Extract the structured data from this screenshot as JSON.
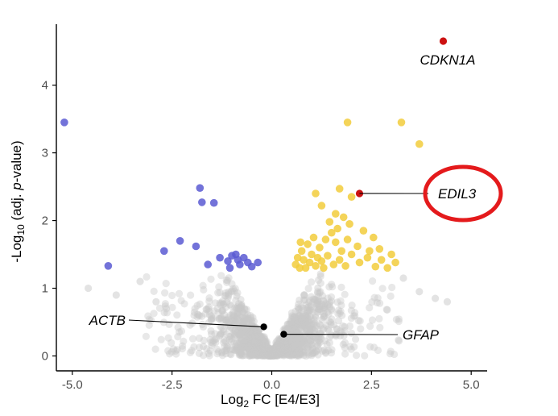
{
  "chart_data": {
    "type": "scatter",
    "title": "",
    "xlabel_parts": [
      "Log",
      "2",
      " FC [E4/E3]"
    ],
    "ylabel_parts": [
      "-Log",
      "10",
      " (adj. ",
      "p",
      "-value)"
    ],
    "xlim": [
      -5.4,
      5.4
    ],
    "ylim": [
      -0.22,
      4.9
    ],
    "xticks": [
      -5.0,
      -2.5,
      0.0,
      2.5,
      5.0
    ],
    "xtick_labels": [
      "-5.0",
      "-2.5",
      "0.0",
      "2.5",
      "5.0"
    ],
    "yticks": [
      0,
      1,
      2,
      3,
      4
    ],
    "ytick_labels": [
      "0",
      "1",
      "2",
      "3",
      "4"
    ],
    "grid": false,
    "legend": "none",
    "colors": {
      "down": "#5a5ad2",
      "up": "#f2cc3c",
      "nonsignificant": "#c8c8c8",
      "highlight": "#cc1111",
      "labeled": "#000000",
      "circle": "#e41a1c"
    },
    "series": [
      {
        "group": "down",
        "points": [
          [
            -5.2,
            3.45
          ],
          [
            -4.1,
            1.33
          ],
          [
            -2.7,
            1.55
          ],
          [
            -2.3,
            1.7
          ],
          [
            -1.9,
            1.62
          ],
          [
            -1.8,
            2.48
          ],
          [
            -1.75,
            2.27
          ],
          [
            -1.45,
            2.26
          ],
          [
            -1.6,
            1.35
          ],
          [
            -1.3,
            1.45
          ],
          [
            -1.1,
            1.4
          ],
          [
            -1.0,
            1.48
          ],
          [
            -0.9,
            1.5
          ],
          [
            -0.85,
            1.42
          ],
          [
            -0.8,
            1.35
          ],
          [
            -0.7,
            1.45
          ],
          [
            -0.6,
            1.38
          ],
          [
            -0.5,
            1.32
          ],
          [
            -0.35,
            1.38
          ],
          [
            -1.05,
            1.3
          ]
        ]
      },
      {
        "group": "up",
        "points": [
          [
            1.9,
            3.45
          ],
          [
            3.25,
            3.45
          ],
          [
            3.7,
            3.13
          ],
          [
            1.7,
            2.47
          ],
          [
            2.0,
            2.35
          ],
          [
            1.1,
            2.4
          ],
          [
            1.25,
            2.22
          ],
          [
            1.6,
            2.1
          ],
          [
            1.45,
            1.98
          ],
          [
            1.8,
            2.05
          ],
          [
            2.3,
            1.85
          ],
          [
            2.7,
            1.58
          ],
          [
            3.0,
            1.5
          ],
          [
            3.1,
            1.38
          ],
          [
            2.6,
            1.32
          ],
          [
            2.9,
            1.3
          ],
          [
            2.4,
            1.45
          ],
          [
            2.15,
            1.62
          ],
          [
            1.9,
            1.72
          ],
          [
            1.75,
            1.55
          ],
          [
            1.6,
            1.68
          ],
          [
            1.5,
            1.82
          ],
          [
            1.35,
            1.72
          ],
          [
            1.2,
            1.6
          ],
          [
            1.05,
            1.75
          ],
          [
            0.9,
            1.65
          ],
          [
            0.75,
            1.55
          ],
          [
            0.65,
            1.45
          ],
          [
            0.6,
            1.35
          ],
          [
            0.7,
            1.3
          ],
          [
            0.8,
            1.42
          ],
          [
            0.95,
            1.38
          ],
          [
            1.1,
            1.33
          ],
          [
            1.25,
            1.4
          ],
          [
            1.4,
            1.48
          ],
          [
            1.55,
            1.35
          ],
          [
            1.7,
            1.42
          ],
          [
            1.85,
            1.33
          ],
          [
            2.0,
            1.5
          ],
          [
            2.2,
            1.38
          ],
          [
            2.45,
            1.55
          ],
          [
            0.85,
            1.3
          ],
          [
            1.0,
            1.5
          ],
          [
            1.15,
            1.45
          ],
          [
            1.3,
            1.3
          ],
          [
            0.72,
            1.68
          ],
          [
            2.55,
            1.75
          ],
          [
            2.75,
            1.42
          ],
          [
            1.95,
            1.95
          ],
          [
            1.65,
            1.88
          ]
        ]
      },
      {
        "group": "highlight",
        "points": [
          [
            4.3,
            4.65
          ],
          [
            2.2,
            2.4
          ]
        ]
      },
      {
        "group": "labeled",
        "points": [
          [
            -0.2,
            0.43
          ],
          [
            0.3,
            0.32
          ]
        ]
      }
    ],
    "annotations": [
      {
        "text": "CDKN1A",
        "point": [
          4.3,
          4.65
        ],
        "connector": false
      },
      {
        "text": "EDIL3",
        "point": [
          2.2,
          2.4
        ],
        "connector": true,
        "circled": true
      },
      {
        "text": "ACTB",
        "point": [
          -0.2,
          0.43
        ],
        "connector": true
      },
      {
        "text": "GFAP",
        "point": [
          0.3,
          0.32
        ],
        "connector": true
      }
    ]
  }
}
